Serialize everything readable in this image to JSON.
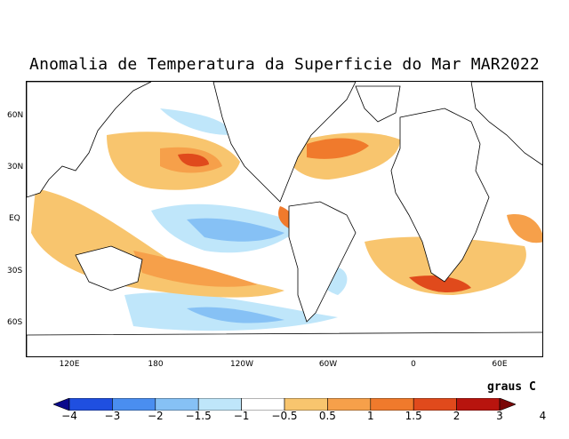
{
  "title": "Anomalia de Temperatura da Superficie do Mar MAR2022",
  "lat_labels": [
    "60N",
    "30N",
    "EQ",
    "30S",
    "60S"
  ],
  "lon_labels": [
    "120E",
    "180",
    "120W",
    "60W",
    "0",
    "60E"
  ],
  "units_label": "graus C",
  "colorbar": {
    "levels": [
      "−4",
      "−3",
      "−2",
      "−1.5",
      "−1",
      "−0.5",
      "0.5",
      "1",
      "1.5",
      "2",
      "3",
      "4"
    ],
    "colors": [
      "#0a0a8c",
      "#1f4fe0",
      "#4a8ef0",
      "#86c1f5",
      "#bfe6fa",
      "#ffffff",
      "#f8c56e",
      "#f6a04a",
      "#f07a2c",
      "#e04a1c",
      "#b8140e",
      "#7a0606"
    ]
  },
  "palette": {
    "land": "#ffffff",
    "coast": "#000000",
    "warm_light": "#f8c56e",
    "warm_mid": "#f6a04a",
    "warm_strong": "#f07a2c",
    "warm_hot": "#e04a1c",
    "cool_light": "#bfe6fa",
    "cool_mid": "#86c1f5",
    "cool_strong": "#4a8ef0"
  }
}
